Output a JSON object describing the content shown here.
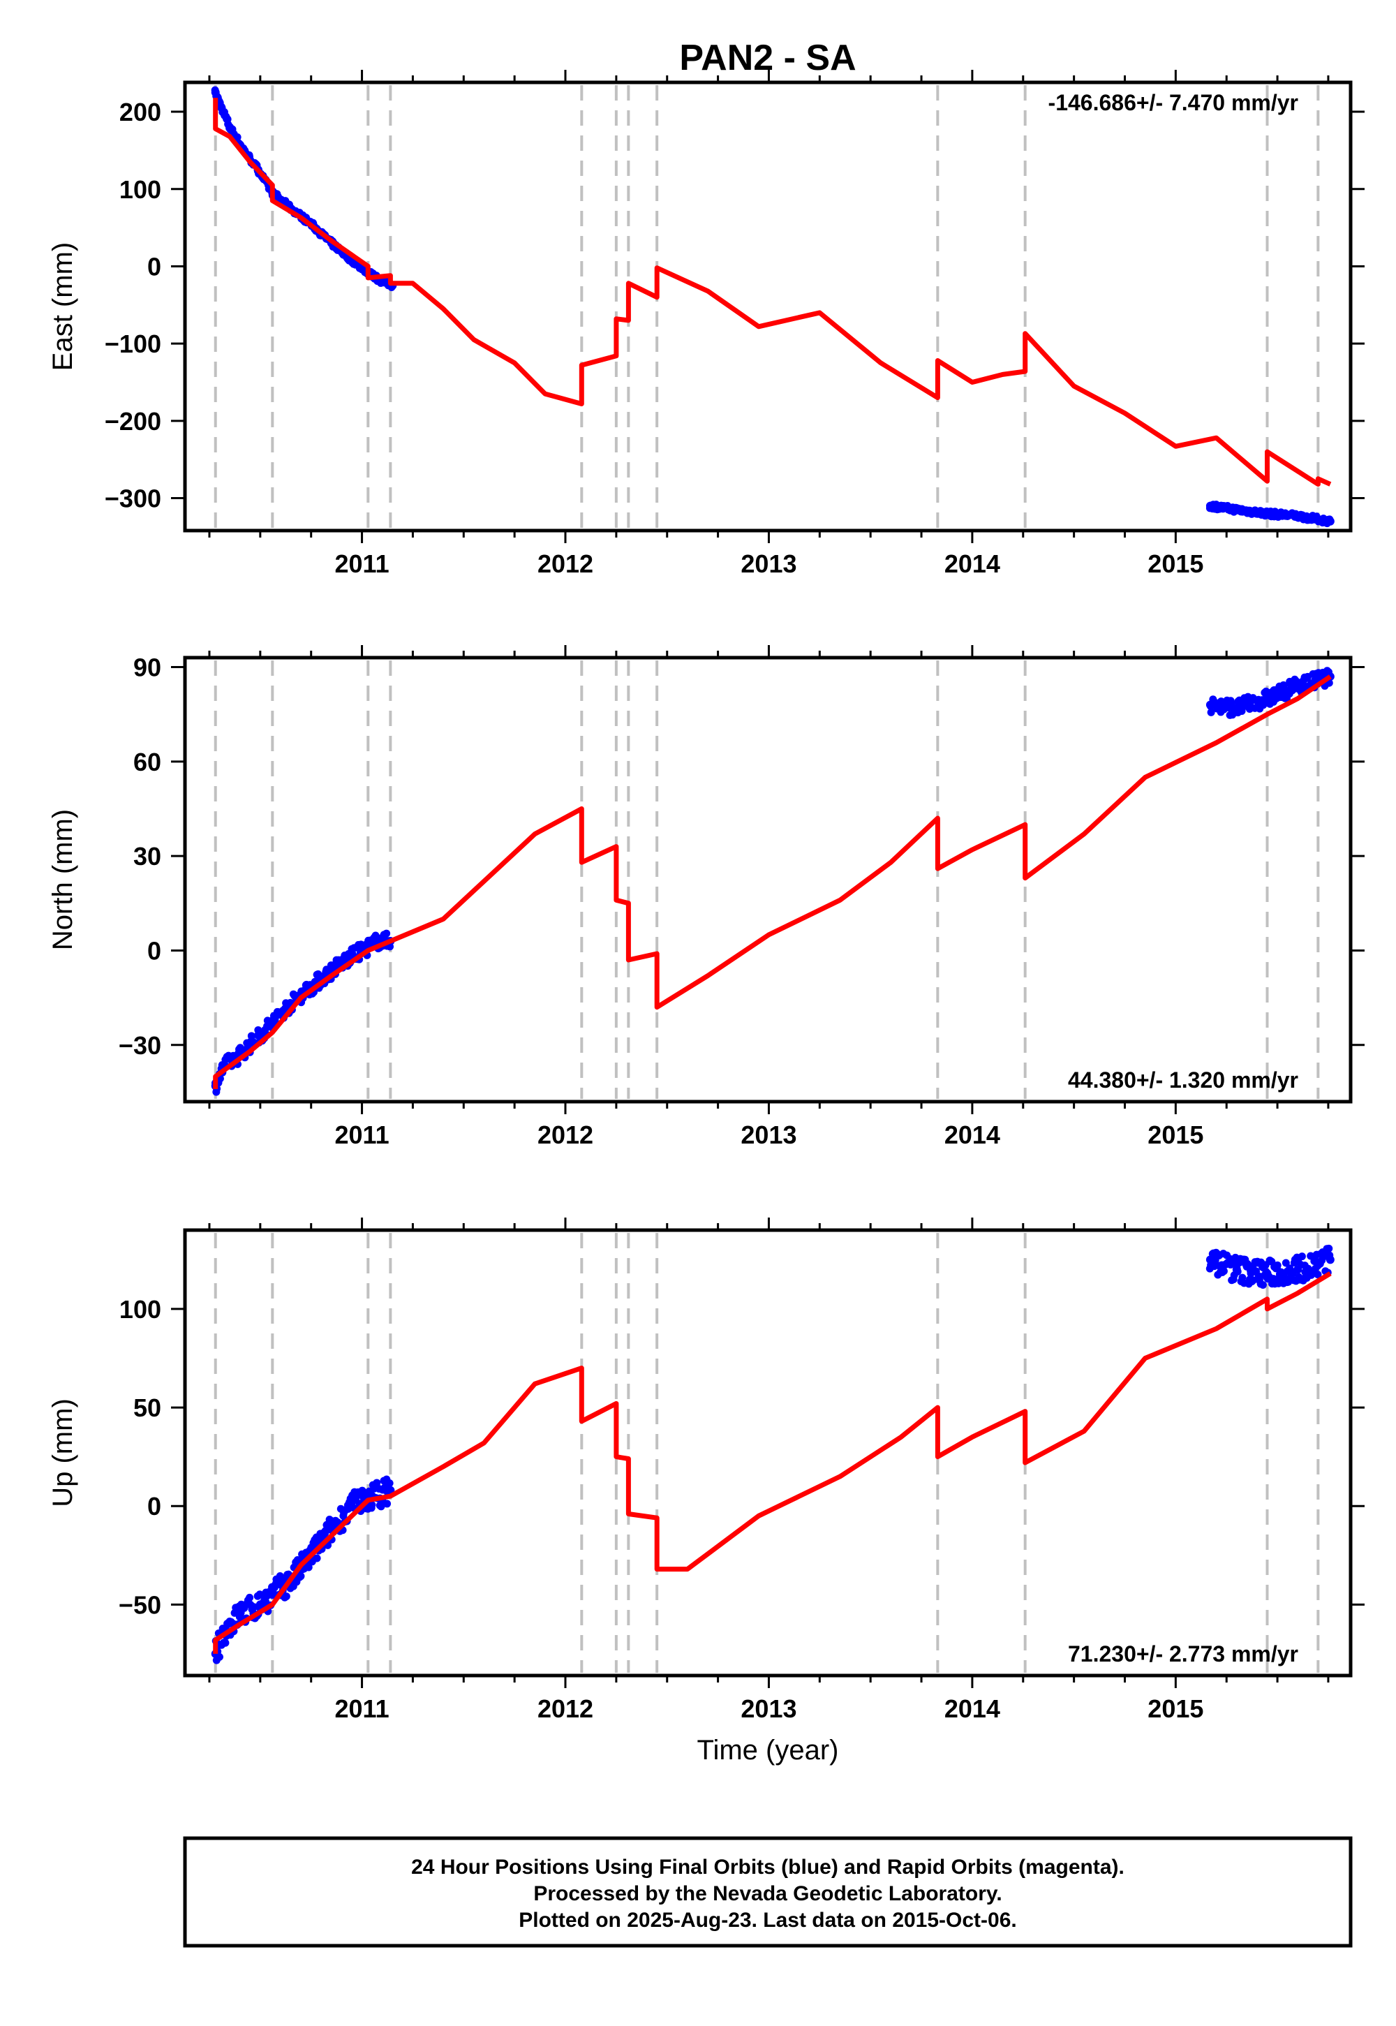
{
  "chart_data": {
    "type": "scatter",
    "title": "PAN2 - SA",
    "xlabel": "Time (year)",
    "x_tick_labels": [
      "2011",
      "2012",
      "2013",
      "2014",
      "2015"
    ],
    "x_range": [
      2010.13,
      2015.86
    ],
    "grid": false,
    "event_lines": [
      2010.28,
      2010.56,
      2011.03,
      2011.14,
      2012.08,
      2012.25,
      2012.31,
      2012.45,
      2013.83,
      2014.26,
      2015.45,
      2015.7
    ],
    "colors": {
      "final_orbits": "#0000ff",
      "model": "#ff0000",
      "event_lines": "#c0c0c0"
    },
    "panels": [
      {
        "id": "east",
        "ylabel": "East (mm)",
        "ylim": [
          -342,
          238
        ],
        "yticks": [
          200,
          100,
          0,
          -100,
          -200,
          -300
        ],
        "ytick_labels": [
          "200",
          "100",
          "0",
          "−100",
          "−200",
          "−300"
        ],
        "rate_label": "-146.686+/- 7.470 mm/yr",
        "rate_position": "top-right",
        "observations": [
          {
            "x": 2010.28,
            "y": 225
          },
          {
            "x": 2010.31,
            "y": 205
          },
          {
            "x": 2010.35,
            "y": 180
          },
          {
            "x": 2010.42,
            "y": 150
          },
          {
            "x": 2010.49,
            "y": 125
          },
          {
            "x": 2010.56,
            "y": 95
          },
          {
            "x": 2010.65,
            "y": 75
          },
          {
            "x": 2010.75,
            "y": 55
          },
          {
            "x": 2010.85,
            "y": 30
          },
          {
            "x": 2010.95,
            "y": 8
          },
          {
            "x": 2011.03,
            "y": -8
          },
          {
            "x": 2011.09,
            "y": -18
          },
          {
            "x": 2011.15,
            "y": -25
          },
          {
            "x": 2015.17,
            "y": -310
          },
          {
            "x": 2015.3,
            "y": -315
          },
          {
            "x": 2015.45,
            "y": -320
          },
          {
            "x": 2015.6,
            "y": -323
          },
          {
            "x": 2015.76,
            "y": -330
          }
        ],
        "model": [
          {
            "x": 2010.28,
            "y": 218
          },
          {
            "x": 2010.28,
            "y": 178
          },
          {
            "x": 2010.35,
            "y": 168
          },
          {
            "x": 2010.45,
            "y": 135
          },
          {
            "x": 2010.56,
            "y": 105
          },
          {
            "x": 2010.56,
            "y": 85
          },
          {
            "x": 2010.7,
            "y": 63
          },
          {
            "x": 2010.85,
            "y": 33
          },
          {
            "x": 2011.03,
            "y": 0
          },
          {
            "x": 2011.03,
            "y": -15
          },
          {
            "x": 2011.14,
            "y": -12
          },
          {
            "x": 2011.14,
            "y": -22
          },
          {
            "x": 2011.25,
            "y": -22
          },
          {
            "x": 2011.4,
            "y": -55
          },
          {
            "x": 2011.55,
            "y": -95
          },
          {
            "x": 2011.75,
            "y": -125
          },
          {
            "x": 2011.9,
            "y": -165
          },
          {
            "x": 2012.08,
            "y": -178
          },
          {
            "x": 2012.08,
            "y": -128
          },
          {
            "x": 2012.25,
            "y": -116
          },
          {
            "x": 2012.25,
            "y": -68
          },
          {
            "x": 2012.31,
            "y": -70
          },
          {
            "x": 2012.31,
            "y": -22
          },
          {
            "x": 2012.45,
            "y": -40
          },
          {
            "x": 2012.45,
            "y": -2
          },
          {
            "x": 2012.7,
            "y": -32
          },
          {
            "x": 2012.95,
            "y": -78
          },
          {
            "x": 2013.25,
            "y": -60
          },
          {
            "x": 2013.55,
            "y": -125
          },
          {
            "x": 2013.83,
            "y": -170
          },
          {
            "x": 2013.83,
            "y": -122
          },
          {
            "x": 2014.0,
            "y": -150
          },
          {
            "x": 2014.15,
            "y": -140
          },
          {
            "x": 2014.26,
            "y": -136
          },
          {
            "x": 2014.26,
            "y": -87
          },
          {
            "x": 2014.5,
            "y": -155
          },
          {
            "x": 2014.75,
            "y": -190
          },
          {
            "x": 2015.0,
            "y": -233
          },
          {
            "x": 2015.2,
            "y": -222
          },
          {
            "x": 2015.45,
            "y": -278
          },
          {
            "x": 2015.45,
            "y": -240
          },
          {
            "x": 2015.7,
            "y": -282
          },
          {
            "x": 2015.7,
            "y": -275
          },
          {
            "x": 2015.76,
            "y": -282
          }
        ]
      },
      {
        "id": "north",
        "ylabel": "North (mm)",
        "ylim": [
          -48,
          93
        ],
        "yticks": [
          90,
          60,
          30,
          0,
          -30
        ],
        "ytick_labels": [
          "90",
          "60",
          "30",
          "0",
          "−30"
        ],
        "rate_label": "44.380+/- 1.320 mm/yr",
        "rate_position": "bottom-right",
        "observations": [
          {
            "x": 2010.28,
            "y": -43
          },
          {
            "x": 2010.32,
            "y": -37
          },
          {
            "x": 2010.4,
            "y": -33
          },
          {
            "x": 2010.5,
            "y": -27
          },
          {
            "x": 2010.6,
            "y": -20
          },
          {
            "x": 2010.7,
            "y": -14
          },
          {
            "x": 2010.8,
            "y": -9
          },
          {
            "x": 2010.9,
            "y": -4
          },
          {
            "x": 2011.0,
            "y": 0
          },
          {
            "x": 2011.08,
            "y": 3
          },
          {
            "x": 2011.14,
            "y": 3
          },
          {
            "x": 2015.17,
            "y": 78
          },
          {
            "x": 2015.3,
            "y": 77
          },
          {
            "x": 2015.45,
            "y": 80
          },
          {
            "x": 2015.6,
            "y": 84
          },
          {
            "x": 2015.76,
            "y": 87
          }
        ],
        "model": [
          {
            "x": 2010.28,
            "y": -44
          },
          {
            "x": 2010.28,
            "y": -40
          },
          {
            "x": 2010.45,
            "y": -32
          },
          {
            "x": 2010.56,
            "y": -26
          },
          {
            "x": 2010.7,
            "y": -15
          },
          {
            "x": 2010.85,
            "y": -8
          },
          {
            "x": 2011.03,
            "y": 0
          },
          {
            "x": 2011.14,
            "y": 3
          },
          {
            "x": 2011.4,
            "y": 10
          },
          {
            "x": 2011.6,
            "y": 22
          },
          {
            "x": 2011.85,
            "y": 37
          },
          {
            "x": 2012.08,
            "y": 45
          },
          {
            "x": 2012.08,
            "y": 28
          },
          {
            "x": 2012.25,
            "y": 33
          },
          {
            "x": 2012.25,
            "y": 16
          },
          {
            "x": 2012.31,
            "y": 15
          },
          {
            "x": 2012.31,
            "y": -3
          },
          {
            "x": 2012.45,
            "y": -1
          },
          {
            "x": 2012.45,
            "y": -18
          },
          {
            "x": 2012.7,
            "y": -8
          },
          {
            "x": 2013.0,
            "y": 5
          },
          {
            "x": 2013.35,
            "y": 16
          },
          {
            "x": 2013.6,
            "y": 28
          },
          {
            "x": 2013.83,
            "y": 42
          },
          {
            "x": 2013.83,
            "y": 26
          },
          {
            "x": 2014.0,
            "y": 32
          },
          {
            "x": 2014.26,
            "y": 40
          },
          {
            "x": 2014.26,
            "y": 23
          },
          {
            "x": 2014.55,
            "y": 37
          },
          {
            "x": 2014.85,
            "y": 55
          },
          {
            "x": 2015.2,
            "y": 66
          },
          {
            "x": 2015.45,
            "y": 75
          },
          {
            "x": 2015.6,
            "y": 80
          },
          {
            "x": 2015.76,
            "y": 87
          }
        ]
      },
      {
        "id": "up",
        "ylabel": "Up (mm)",
        "ylim": [
          -86,
          140
        ],
        "yticks": [
          100,
          50,
          0,
          -50
        ],
        "ytick_labels": [
          "100",
          "50",
          "0",
          "−50"
        ],
        "rate_label": "71.230+/- 2.773 mm/yr",
        "rate_position": "bottom-right",
        "observations": [
          {
            "x": 2010.28,
            "y": -75
          },
          {
            "x": 2010.33,
            "y": -63
          },
          {
            "x": 2010.4,
            "y": -55
          },
          {
            "x": 2010.5,
            "y": -50
          },
          {
            "x": 2010.56,
            "y": -45
          },
          {
            "x": 2010.65,
            "y": -38
          },
          {
            "x": 2010.75,
            "y": -25
          },
          {
            "x": 2010.85,
            "y": -12
          },
          {
            "x": 2010.95,
            "y": 0
          },
          {
            "x": 2011.05,
            "y": 5
          },
          {
            "x": 2011.14,
            "y": 8
          },
          {
            "x": 2015.17,
            "y": 125
          },
          {
            "x": 2015.3,
            "y": 120
          },
          {
            "x": 2015.45,
            "y": 118
          },
          {
            "x": 2015.6,
            "y": 120
          },
          {
            "x": 2015.76,
            "y": 125
          }
        ],
        "model": [
          {
            "x": 2010.28,
            "y": -75
          },
          {
            "x": 2010.28,
            "y": -68
          },
          {
            "x": 2010.4,
            "y": -60
          },
          {
            "x": 2010.56,
            "y": -50
          },
          {
            "x": 2010.7,
            "y": -30
          },
          {
            "x": 2010.85,
            "y": -15
          },
          {
            "x": 2011.03,
            "y": 3
          },
          {
            "x": 2011.14,
            "y": 5
          },
          {
            "x": 2011.4,
            "y": 20
          },
          {
            "x": 2011.6,
            "y": 32
          },
          {
            "x": 2011.85,
            "y": 62
          },
          {
            "x": 2012.08,
            "y": 70
          },
          {
            "x": 2012.08,
            "y": 43
          },
          {
            "x": 2012.25,
            "y": 52
          },
          {
            "x": 2012.25,
            "y": 25
          },
          {
            "x": 2012.31,
            "y": 24
          },
          {
            "x": 2012.31,
            "y": -4
          },
          {
            "x": 2012.45,
            "y": -6
          },
          {
            "x": 2012.45,
            "y": -32
          },
          {
            "x": 2012.6,
            "y": -32
          },
          {
            "x": 2012.95,
            "y": -5
          },
          {
            "x": 2013.35,
            "y": 15
          },
          {
            "x": 2013.65,
            "y": 35
          },
          {
            "x": 2013.83,
            "y": 50
          },
          {
            "x": 2013.83,
            "y": 25
          },
          {
            "x": 2014.0,
            "y": 35
          },
          {
            "x": 2014.26,
            "y": 48
          },
          {
            "x": 2014.26,
            "y": 22
          },
          {
            "x": 2014.55,
            "y": 38
          },
          {
            "x": 2014.85,
            "y": 75
          },
          {
            "x": 2015.2,
            "y": 90
          },
          {
            "x": 2015.45,
            "y": 105
          },
          {
            "x": 2015.45,
            "y": 100
          },
          {
            "x": 2015.6,
            "y": 108
          },
          {
            "x": 2015.76,
            "y": 118
          }
        ]
      }
    ]
  },
  "footer": {
    "line1": "24 Hour Positions Using Final Orbits (blue) and Rapid Orbits (magenta).",
    "line2": "Processed by the Nevada Geodetic Laboratory.",
    "line3": "Plotted on 2025-Aug-23. Last data on 2015-Oct-06."
  }
}
